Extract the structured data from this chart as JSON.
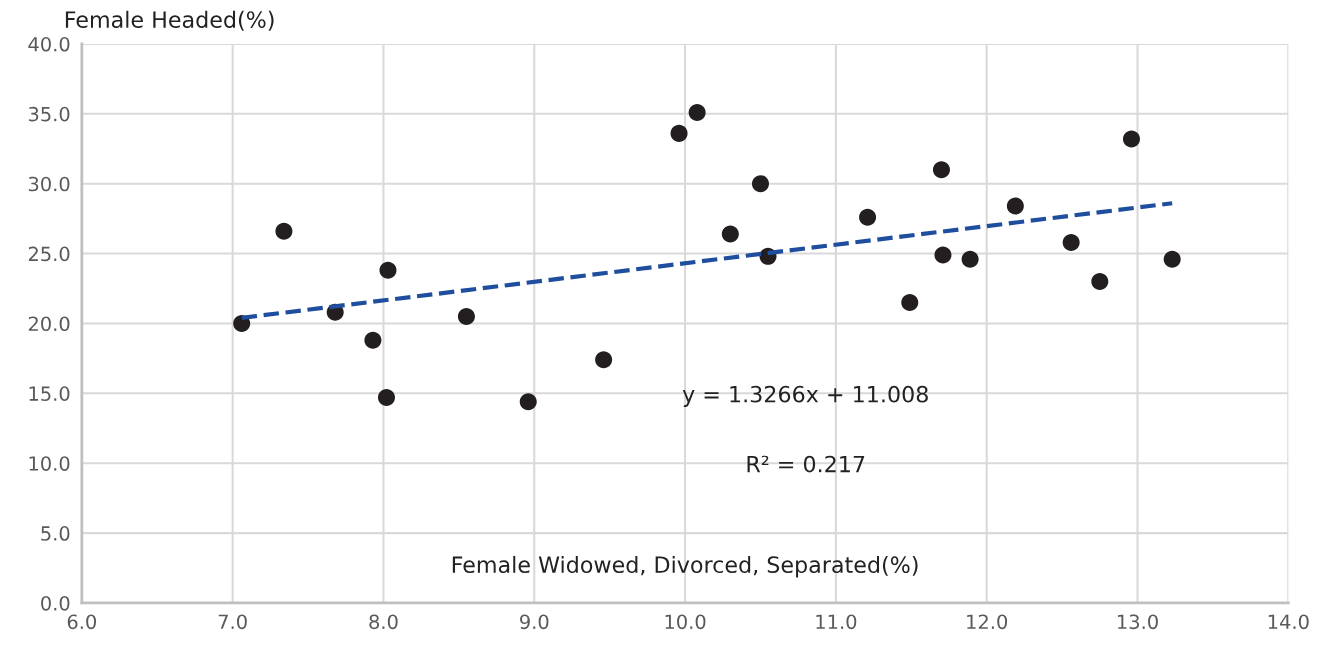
{
  "chart_data": {
    "type": "scatter",
    "xlabel": "Female Widowed, Divorced, Separated(%)",
    "ylabel": "Female Headed(%)",
    "xlim": [
      6,
      14
    ],
    "ylim": [
      0,
      40
    ],
    "xticks": [
      {
        "value": 6,
        "label": "6.0"
      },
      {
        "value": 7,
        "label": "7.0"
      },
      {
        "value": 8,
        "label": "8.0"
      },
      {
        "value": 9,
        "label": "9.0"
      },
      {
        "value": 10,
        "label": "10.0"
      },
      {
        "value": 11,
        "label": "11.0"
      },
      {
        "value": 12,
        "label": "12.0"
      },
      {
        "value": 13,
        "label": "13.0"
      },
      {
        "value": 14,
        "label": "14.0"
      }
    ],
    "yticks": [
      {
        "value": 0,
        "label": "0.0"
      },
      {
        "value": 5,
        "label": "5.0"
      },
      {
        "value": 10,
        "label": "10.0"
      },
      {
        "value": 15,
        "label": "15.0"
      },
      {
        "value": 20,
        "label": "20.0"
      },
      {
        "value": 25,
        "label": "25.0"
      },
      {
        "value": 30,
        "label": "30.0"
      },
      {
        "value": 35,
        "label": "35.0"
      },
      {
        "value": 40,
        "label": "40.0"
      }
    ],
    "grid": true,
    "marker": "circle",
    "series": [
      {
        "color": "#231f20",
        "x": [
          7.06,
          7.34,
          7.68,
          7.93,
          8.02,
          8.03,
          8.55,
          8.96,
          9.46,
          9.96,
          10.08,
          10.3,
          10.5,
          10.55,
          11.21,
          11.49,
          11.7,
          11.71,
          11.89,
          12.19,
          12.56,
          12.75,
          12.96,
          13.23
        ],
        "values": [
          20.0,
          26.6,
          20.8,
          18.8,
          14.7,
          23.8,
          20.5,
          14.4,
          17.4,
          33.6,
          35.1,
          26.4,
          30.0,
          24.8,
          27.6,
          21.5,
          31.0,
          24.9,
          24.6,
          28.4,
          25.8,
          23.0,
          33.2,
          24.6
        ]
      },
      {
        "type": "line",
        "color": "#1f4e9e",
        "line_style": "dashed",
        "marker": "none",
        "x": [
          7.06,
          13.23
        ],
        "values": [
          20.4,
          28.6
        ]
      }
    ],
    "annotations": [
      "y = 1.3266x + 11.008",
      "R² = 0.217"
    ]
  }
}
